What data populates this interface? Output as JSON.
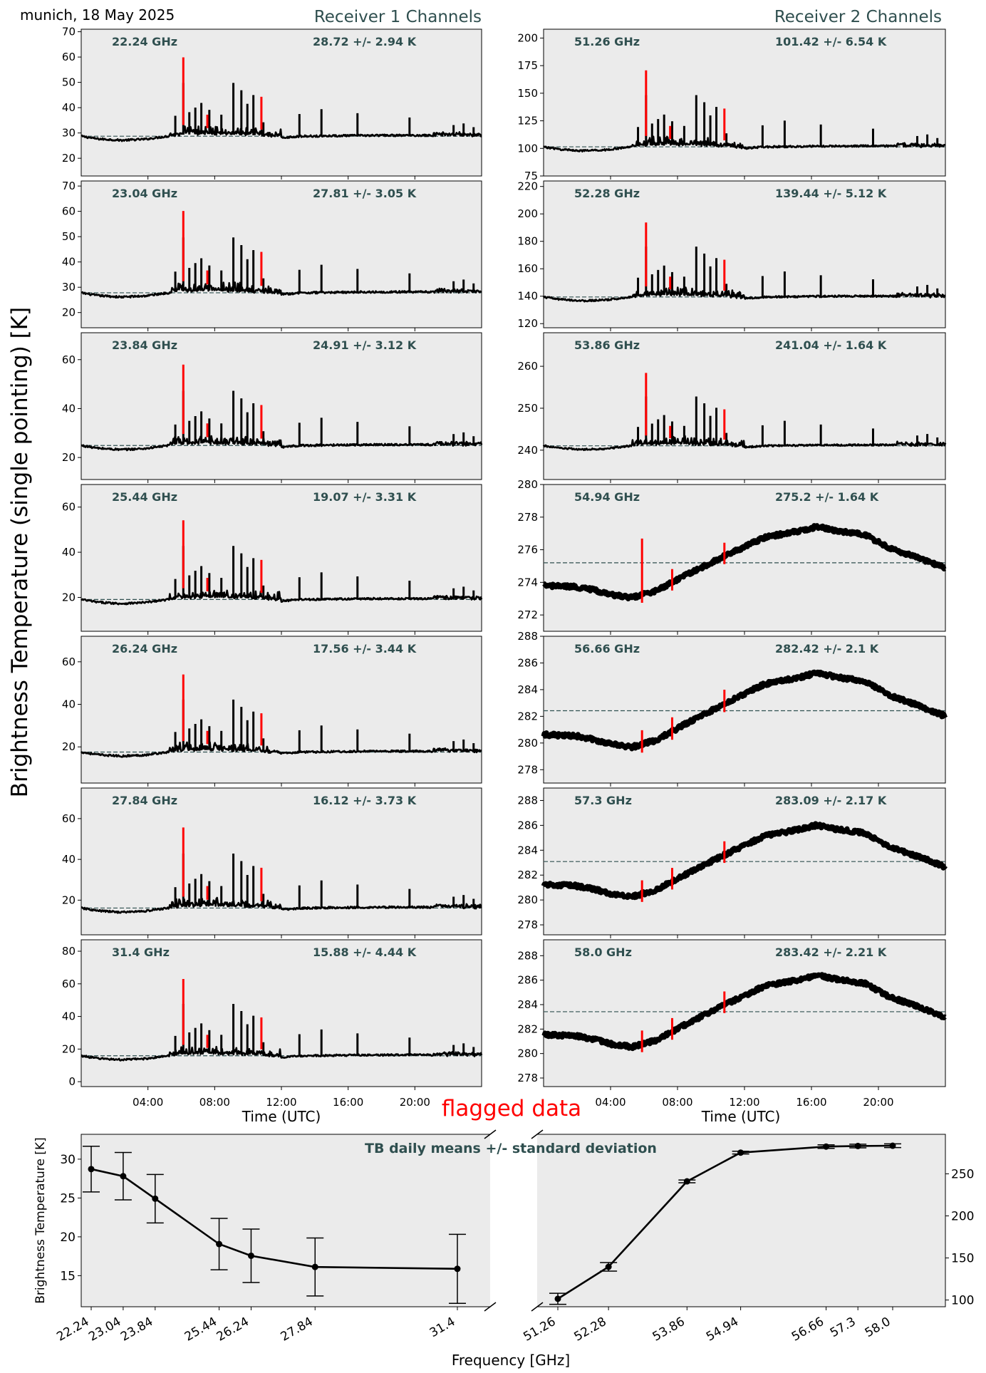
{
  "figure": {
    "site_date": "munich, 18 May 2025",
    "receiver1_title": "Receiver 1 Channels",
    "receiver2_title": "Receiver 2 Channels",
    "shared_ylabel": "Brightness Temperature (single pointing) [K]",
    "time_xlabel": "Time (UTC)",
    "time_ticks": [
      "04:00",
      "08:00",
      "12:00",
      "16:00",
      "20:00"
    ],
    "flag_label": "flagged data",
    "line_color": "#000000",
    "flag_color": "#ff0000",
    "panel_bg": "#ebebeb",
    "mean_line_color": "#2f4f4f"
  },
  "chart_data": [
    {
      "type": "line",
      "receiver": 1,
      "channel": "22.24 GHz",
      "stats": "28.72 +/- 2.94 K",
      "mean": 28.72,
      "std": 2.94,
      "ylim": [
        13,
        71
      ],
      "yticks": [
        20,
        30,
        40,
        50,
        60,
        70
      ],
      "profile": "k"
    },
    {
      "type": "line",
      "receiver": 1,
      "channel": "23.04 GHz",
      "stats": "27.81 +/- 3.05 K",
      "mean": 27.81,
      "std": 3.05,
      "ylim": [
        14,
        72
      ],
      "yticks": [
        20,
        30,
        40,
        50,
        60,
        70
      ],
      "profile": "k"
    },
    {
      "type": "line",
      "receiver": 1,
      "channel": "23.84 GHz",
      "stats": "24.91 +/- 3.12 K",
      "mean": 24.91,
      "std": 3.12,
      "ylim": [
        11,
        71
      ],
      "yticks": [
        20,
        40,
        60
      ],
      "profile": "k"
    },
    {
      "type": "line",
      "receiver": 1,
      "channel": "25.44 GHz",
      "stats": "19.07 +/- 3.31 K",
      "mean": 19.07,
      "std": 3.31,
      "ylim": [
        5,
        70
      ],
      "yticks": [
        20,
        40,
        60
      ],
      "profile": "k"
    },
    {
      "type": "line",
      "receiver": 1,
      "channel": "26.24 GHz",
      "stats": "17.56 +/- 3.44 K",
      "mean": 17.56,
      "std": 3.44,
      "ylim": [
        3,
        72
      ],
      "yticks": [
        20,
        40,
        60
      ],
      "profile": "k"
    },
    {
      "type": "line",
      "receiver": 1,
      "channel": "27.84 GHz",
      "stats": "16.12 +/- 3.73 K",
      "mean": 16.12,
      "std": 3.73,
      "ylim": [
        3,
        75
      ],
      "yticks": [
        20,
        40,
        60
      ],
      "profile": "k"
    },
    {
      "type": "line",
      "receiver": 1,
      "channel": "31.4 GHz",
      "stats": "15.88 +/- 4.44 K",
      "mean": 15.88,
      "std": 4.44,
      "ylim": [
        -3,
        87
      ],
      "yticks": [
        0,
        20,
        40,
        60,
        80
      ],
      "profile": "k"
    },
    {
      "type": "line",
      "receiver": 2,
      "channel": "51.26 GHz",
      "stats": "101.42 +/- 6.54 K",
      "mean": 101.42,
      "std": 6.54,
      "ylim": [
        75,
        208
      ],
      "yticks": [
        75,
        100,
        125,
        150,
        175,
        200
      ],
      "profile": "k"
    },
    {
      "type": "line",
      "receiver": 2,
      "channel": "52.28 GHz",
      "stats": "139.44 +/- 5.12 K",
      "mean": 139.44,
      "std": 5.12,
      "ylim": [
        117,
        224
      ],
      "yticks": [
        120,
        140,
        160,
        180,
        200,
        220
      ],
      "profile": "k"
    },
    {
      "type": "line",
      "receiver": 2,
      "channel": "53.86 GHz",
      "stats": "241.04 +/- 1.64 K",
      "mean": 241.04,
      "std": 1.64,
      "ylim": [
        233,
        268
      ],
      "yticks": [
        240,
        250,
        260
      ],
      "profile": "k"
    },
    {
      "type": "line",
      "receiver": 2,
      "channel": "54.94 GHz",
      "stats": "275.2 +/- 1.64 K",
      "mean": 275.2,
      "std": 1.64,
      "ylim": [
        271,
        280
      ],
      "yticks": [
        272,
        274,
        276,
        278,
        280
      ],
      "profile": "o"
    },
    {
      "type": "line",
      "receiver": 2,
      "channel": "56.66 GHz",
      "stats": "282.42 +/- 2.1 K",
      "mean": 282.42,
      "std": 2.1,
      "ylim": [
        277,
        288
      ],
      "yticks": [
        278,
        280,
        282,
        284,
        286,
        288
      ],
      "profile": "o"
    },
    {
      "type": "line",
      "receiver": 2,
      "channel": "57.3 GHz",
      "stats": "283.09 +/- 2.17 K",
      "mean": 283.09,
      "std": 2.17,
      "ylim": [
        277.2,
        289
      ],
      "yticks": [
        278,
        280,
        282,
        284,
        286,
        288
      ],
      "profile": "o"
    },
    {
      "type": "line",
      "receiver": 2,
      "channel": "58.0 GHz",
      "stats": "283.42 +/- 2.21 K",
      "mean": 283.42,
      "std": 2.21,
      "ylim": [
        277.3,
        289.3
      ],
      "yticks": [
        278,
        280,
        282,
        284,
        286,
        288
      ],
      "profile": "o"
    },
    {
      "type": "line",
      "title": "TB daily means +/- standard deviation",
      "xlabel": "Frequency [GHz]",
      "ylabel": "Brightness Temperature [K]",
      "left_series": {
        "x": [
          22.24,
          23.04,
          23.84,
          25.44,
          26.24,
          27.84,
          31.4
        ],
        "mean": [
          28.72,
          27.81,
          24.91,
          19.07,
          17.56,
          16.12,
          15.88
        ],
        "std": [
          2.94,
          3.05,
          3.12,
          3.31,
          3.44,
          3.73,
          4.44
        ],
        "xlabels": [
          "22.24",
          "23.04",
          "23.84",
          "25.44",
          "26.24",
          "27.84",
          "31.4"
        ],
        "ylim": [
          11,
          33.2
        ],
        "yticks": [
          15,
          20,
          25,
          30
        ]
      },
      "right_series": {
        "x": [
          51.26,
          52.28,
          53.86,
          54.94,
          56.66,
          57.3,
          58.0
        ],
        "mean": [
          101.42,
          139.44,
          241.04,
          275.2,
          282.42,
          283.09,
          283.42
        ],
        "std": [
          6.54,
          5.12,
          1.64,
          1.64,
          2.1,
          2.17,
          2.21
        ],
        "xlabels": [
          "51.26",
          "52.28",
          "53.86",
          "54.94",
          "56.66",
          "57.3",
          "58.0"
        ],
        "ylim": [
          92,
          297
        ],
        "yticks": [
          100,
          150,
          200,
          250
        ]
      }
    }
  ]
}
